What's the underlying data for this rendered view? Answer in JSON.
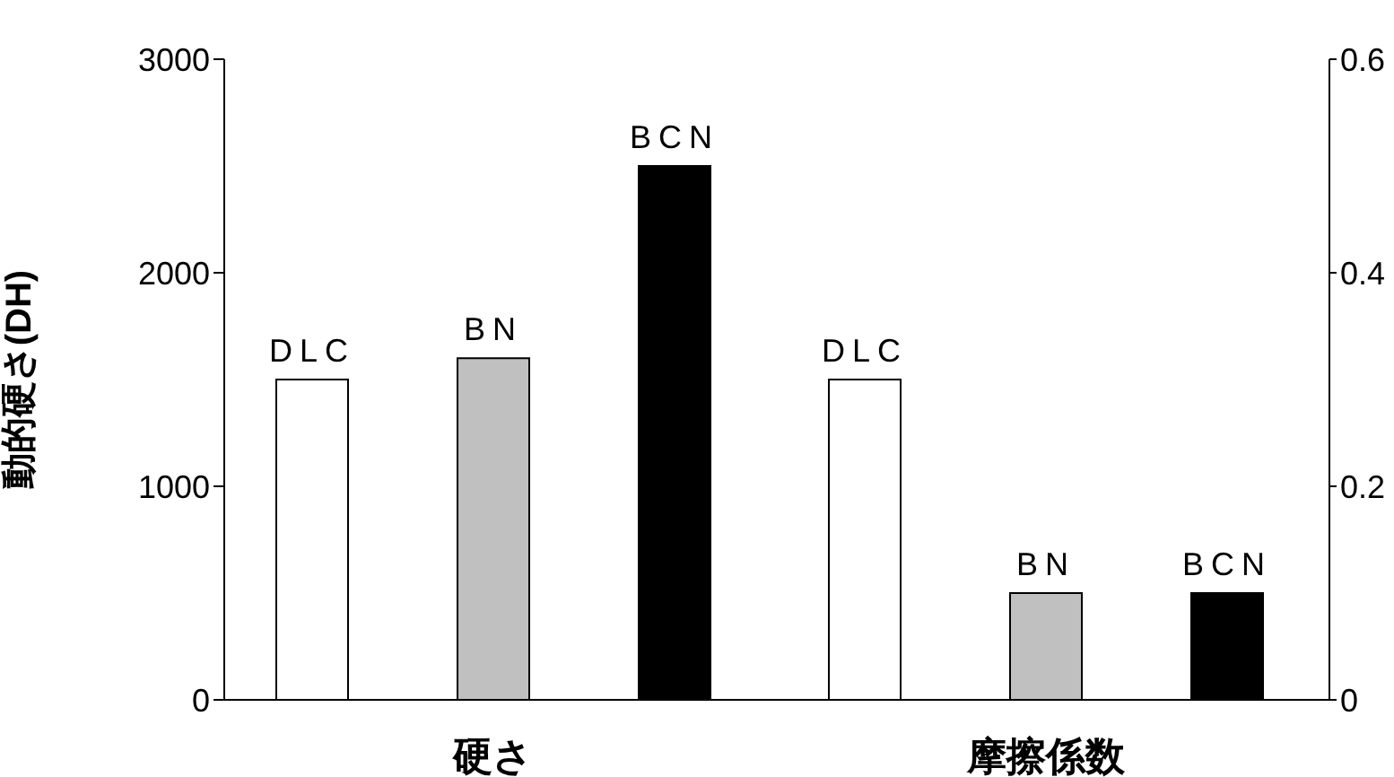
{
  "chart_data": [
    {
      "type": "bar",
      "xlabel": "硬さ",
      "ylabel": "動的硬さ(DH)",
      "categories": [
        null
      ],
      "ylim": [
        0,
        3000
      ],
      "yticks": [
        0,
        1000,
        2000,
        3000
      ],
      "legend": false,
      "grid": false,
      "series": [
        {
          "name": "DLC",
          "color": "#ffffff",
          "values": [
            1500
          ]
        },
        {
          "name": "BN",
          "color": "#c0c0c0",
          "values": [
            1600
          ]
        },
        {
          "name": "BCN",
          "color": "#000000",
          "values": [
            2500
          ]
        }
      ]
    },
    {
      "type": "bar",
      "xlabel": "摩擦係数",
      "categories": [
        null
      ],
      "ylim": [
        0,
        0.6
      ],
      "yticks": [
        0,
        0.2,
        0.4,
        0.6
      ],
      "legend": false,
      "grid": false,
      "series": [
        {
          "name": "DLC",
          "color": "#ffffff",
          "values": [
            0.3
          ]
        },
        {
          "name": "BN",
          "color": "#c0c0c0",
          "values": [
            0.1
          ]
        },
        {
          "name": "BCN",
          "color": "#000000",
          "values": [
            0.1
          ]
        }
      ]
    }
  ]
}
